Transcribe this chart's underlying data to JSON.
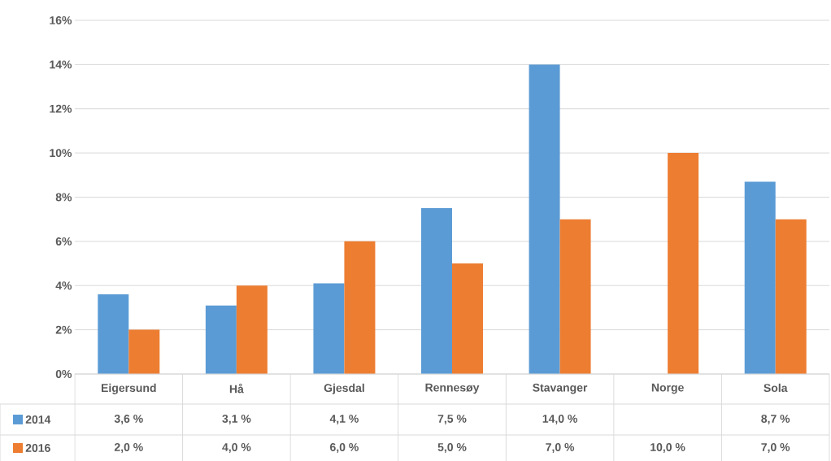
{
  "chart_data": {
    "type": "bar",
    "categories": [
      "Eigersund",
      "Hå",
      "Gjesdal",
      "Rennesøy",
      "Stavanger",
      "Norge",
      "Sola"
    ],
    "series": [
      {
        "name": "2014",
        "color": "#5b9bd5",
        "values": [
          3.6,
          3.1,
          4.1,
          7.5,
          14.0,
          null,
          8.7
        ],
        "value_labels": [
          "3,6 %",
          "3,1 %",
          "4,1 %",
          "7,5 %",
          "14,0 %",
          null,
          "8,7 %"
        ]
      },
      {
        "name": "2016",
        "color": "#ed7d31",
        "values": [
          2.0,
          4.0,
          6.0,
          5.0,
          7.0,
          10.0,
          7.0
        ],
        "value_labels": [
          "2,0 %",
          "4,0 %",
          "6,0 %",
          "5,0 %",
          "7,0 %",
          "10,0 %",
          "7,0 %"
        ]
      }
    ],
    "ylim": [
      0,
      16
    ],
    "yticks": [
      {
        "value": 0,
        "label": "0%"
      },
      {
        "value": 2,
        "label": "2%"
      },
      {
        "value": 4,
        "label": "4%"
      },
      {
        "value": 6,
        "label": "6%"
      },
      {
        "value": 8,
        "label": "8%"
      },
      {
        "value": 10,
        "label": "10%"
      },
      {
        "value": 12,
        "label": "12%"
      },
      {
        "value": 14,
        "label": "14%"
      },
      {
        "value": 16,
        "label": "16%"
      }
    ],
    "grid": "y",
    "legend": "bottom left"
  }
}
